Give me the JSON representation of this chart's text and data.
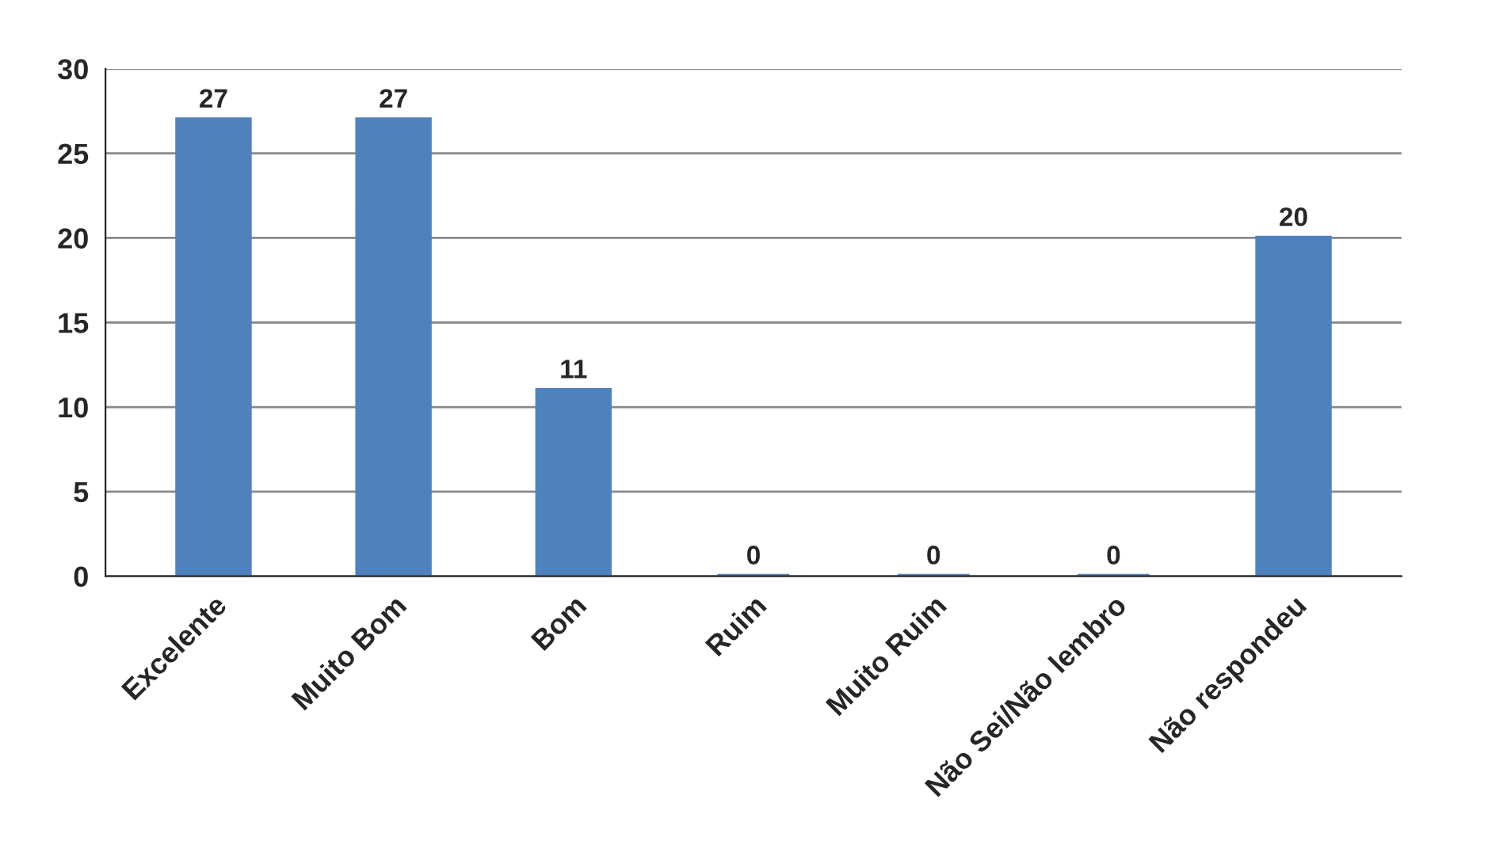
{
  "chart_data": {
    "type": "bar",
    "categories": [
      "Excelente",
      "Muito Bom",
      "Bom",
      "Ruim",
      "Muito Ruim",
      "Não Sei/Não lembro",
      "Não respondeu"
    ],
    "values": [
      27,
      27,
      11,
      0,
      0,
      0,
      20
    ],
    "color": "#4f81bd",
    "ylim": [
      0,
      30
    ],
    "yticks": [
      0,
      5,
      10,
      15,
      20,
      25,
      30
    ],
    "grid": "y",
    "data_labels": true
  }
}
